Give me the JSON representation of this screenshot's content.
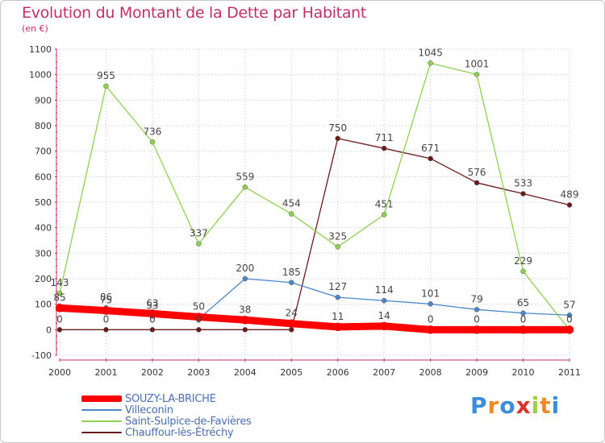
{
  "chart_data": {
    "type": "line",
    "title": "Evolution du Montant de la Dette par Habitant",
    "subtitle": "(en €)",
    "x": [
      "2000",
      "2001",
      "2002",
      "2003",
      "2004",
      "2005",
      "2006",
      "2007",
      "2008",
      "2009",
      "2010",
      "2011"
    ],
    "y_ticks": [
      -100,
      0,
      100,
      200,
      300,
      400,
      500,
      600,
      700,
      800,
      900,
      1000,
      1100
    ],
    "ylim": [
      -100,
      1100
    ],
    "grid": true,
    "series": [
      {
        "name": "Chauffour-lès-Étréchy",
        "color": "#6b1a1a",
        "values": [
          0,
          0,
          0,
          0,
          0,
          0,
          750,
          711,
          671,
          576,
          533,
          489
        ],
        "labels": [
          "0",
          "0",
          "0",
          "0",
          "",
          "",
          "750",
          "711",
          "671",
          "576",
          "533",
          "489"
        ]
      },
      {
        "name": "Saint-Sulpice-de-Favières",
        "color": "#8fd14f",
        "values": [
          143,
          955,
          736,
          337,
          559,
          454,
          325,
          451,
          1045,
          1001,
          229,
          0
        ],
        "labels": [
          "143",
          "955",
          "736",
          "337",
          "559",
          "454",
          "325",
          "451",
          "1045",
          "1001",
          "229",
          ""
        ]
      },
      {
        "name": "Villeconin",
        "color": "#4a86c8",
        "values": [
          93,
          86,
          53,
          42,
          200,
          185,
          127,
          114,
          101,
          79,
          65,
          57
        ],
        "labels": [
          "",
          "86",
          "53",
          "",
          "200",
          "185",
          "127",
          "114",
          "101",
          "79",
          "65",
          "57"
        ]
      },
      {
        "name": "SOUZY-LA-BRICHE",
        "color": "#ff0000",
        "values": [
          85,
          75,
          63,
          50,
          38,
          24,
          11,
          14,
          0,
          0,
          0,
          0
        ],
        "labels": [
          "85",
          "75",
          "63",
          "50",
          "38",
          "24",
          "11",
          "14",
          "0",
          "0",
          "0",
          "0"
        ]
      }
    ]
  },
  "legend": [
    {
      "name": "SOUZY-LA-BRICHE",
      "color": "#ff0000"
    },
    {
      "name": "Villeconin",
      "color": "#4a86c8"
    },
    {
      "name": "Saint-Sulpice-de-Favières",
      "color": "#8fd14f"
    },
    {
      "name": "Chauffour-lès-Étréchy",
      "color": "#6b1a1a"
    }
  ],
  "logo": {
    "text": "Proxiti"
  }
}
